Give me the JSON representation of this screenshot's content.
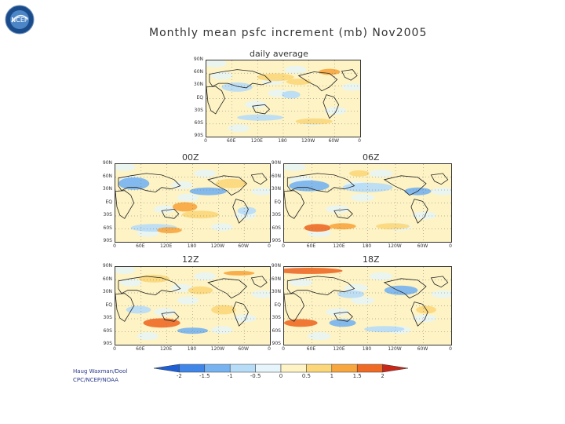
{
  "header": {
    "title": "Monthly mean psfc increment (mb) Nov2005"
  },
  "panels": [
    {
      "label": "daily average",
      "y_labels": [
        "90N",
        "60N",
        "30N",
        "EQ",
        "30S",
        "60S",
        "90S"
      ],
      "x_labels": [
        "0",
        "60E",
        "120E",
        "180",
        "120W",
        "60W",
        "0"
      ]
    },
    {
      "label": "00Z",
      "y_labels": [
        "90N",
        "60N",
        "30N",
        "EQ",
        "30S",
        "60S",
        "90S"
      ],
      "x_labels": [
        "0",
        "60E",
        "120E",
        "180",
        "120W",
        "60W",
        "0"
      ]
    },
    {
      "label": "06Z",
      "y_labels": [
        "90N",
        "60N",
        "30N",
        "EQ",
        "30S",
        "60S",
        "90S"
      ],
      "x_labels": [
        "0",
        "60E",
        "120E",
        "180",
        "120W",
        "60W",
        "0"
      ]
    },
    {
      "label": "12Z",
      "y_labels": [
        "90N",
        "60N",
        "30N",
        "EQ",
        "30S",
        "60S",
        "90S"
      ],
      "x_labels": [
        "0",
        "60E",
        "120E",
        "180",
        "120W",
        "60W",
        "0"
      ]
    },
    {
      "label": "18Z",
      "y_labels": [
        "90N",
        "60N",
        "30N",
        "EQ",
        "30S",
        "60S",
        "90S"
      ],
      "x_labels": [
        "0",
        "60E",
        "120E",
        "180",
        "120W",
        "60W",
        "0"
      ]
    }
  ],
  "colorbar": {
    "ticks": [
      "-2",
      "-1.5",
      "-1",
      "-0.5",
      "0",
      "0.5",
      "1",
      "1.5",
      "2"
    ],
    "colors": [
      "#1e5fd6",
      "#3f86e8",
      "#77b3f0",
      "#b6dcf8",
      "#e6f5fb",
      "#fdf3c4",
      "#fbd77a",
      "#f8a63e",
      "#ee6a25",
      "#c9271a"
    ]
  },
  "credit": {
    "line1": "Haug Waxman/Dool",
    "line2": "CPC/NCEP/NOAA"
  },
  "logo": {
    "text": "NCEP",
    "color": "#1a4c8c"
  }
}
